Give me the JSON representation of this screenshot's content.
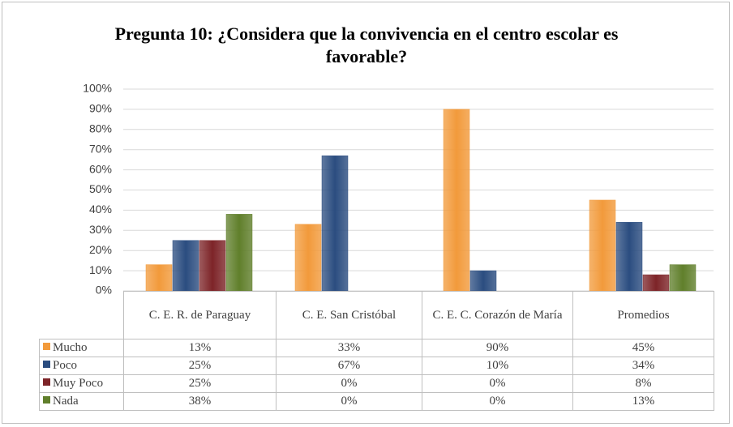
{
  "chart_data": {
    "type": "bar",
    "title": "Pregunta 10: ¿Considera que la convivencia en el centro escolar es favorable?",
    "categories": [
      "C. E. R. de Paraguay",
      "C. E. San Cristóbal",
      "C. E. C. Corazón de María",
      "Promedios"
    ],
    "series": [
      {
        "name": "Mucho",
        "color": "#f29a3b",
        "values": [
          13,
          33,
          90,
          45
        ],
        "value_labels": [
          "13%",
          "33%",
          "90%",
          "45%"
        ]
      },
      {
        "name": "Poco",
        "color": "#2b4d80",
        "values": [
          25,
          67,
          10,
          34
        ],
        "value_labels": [
          "25%",
          "67%",
          "10%",
          "34%"
        ]
      },
      {
        "name": "Muy Poco",
        "color": "#7d2428",
        "values": [
          25,
          0,
          0,
          8
        ],
        "value_labels": [
          "25%",
          "0%",
          "0%",
          "8%"
        ]
      },
      {
        "name": "Nada",
        "color": "#607f2b",
        "values": [
          38,
          0,
          0,
          13
        ],
        "value_labels": [
          "38%",
          "0%",
          "0%",
          "13%"
        ]
      }
    ],
    "ylim": [
      0,
      100
    ],
    "yticks": [
      {
        "value": 0,
        "label": "0%"
      },
      {
        "value": 10,
        "label": "10%"
      },
      {
        "value": 20,
        "label": "20%"
      },
      {
        "value": 30,
        "label": "30%"
      },
      {
        "value": 40,
        "label": "40%"
      },
      {
        "value": 50,
        "label": "50%"
      },
      {
        "value": 60,
        "label": "60%"
      },
      {
        "value": 70,
        "label": "70%"
      },
      {
        "value": 80,
        "label": "80%"
      },
      {
        "value": 90,
        "label": "90%"
      },
      {
        "value": 100,
        "label": "100%"
      }
    ],
    "grid": true
  }
}
